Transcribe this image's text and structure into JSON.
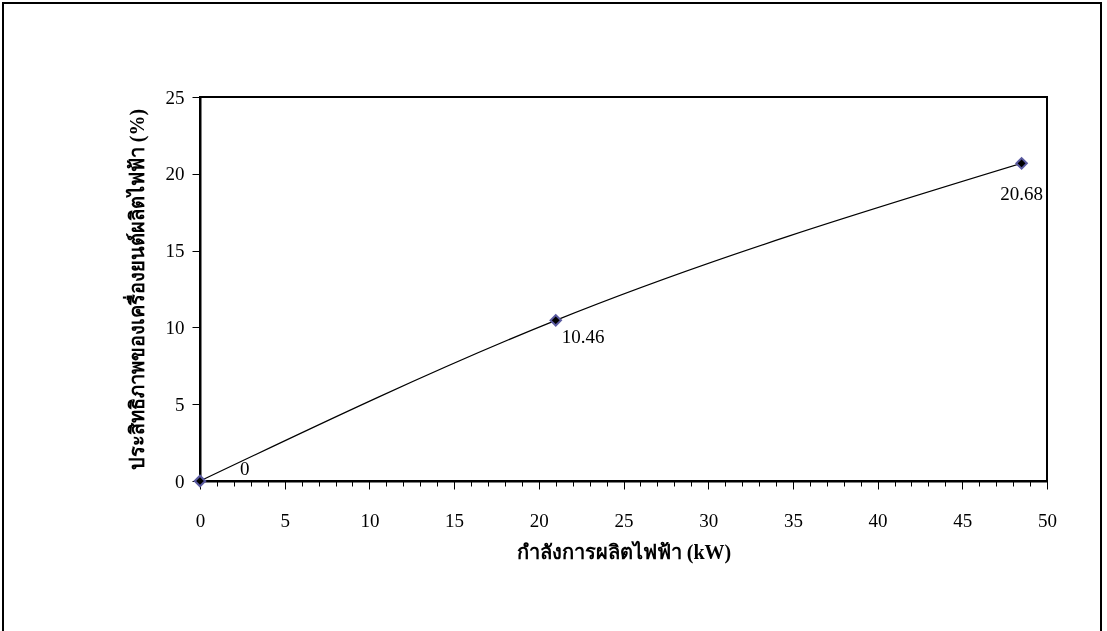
{
  "chart_data": {
    "type": "line",
    "xlabel": "กำลังการผลิตไฟฟ้า (kW)",
    "ylabel": "ประสิทธิภาพของเครื่องยนต์ผลิตไฟฟ้า (%)",
    "x": [
      0,
      21,
      48.5
    ],
    "series": [
      {
        "color": "#000000",
        "values": [
          0,
          10.46,
          20.68
        ],
        "value_labels": [
          "0",
          "10.46",
          "20.68"
        ]
      }
    ],
    "xlim": [
      0,
      50
    ],
    "ylim": [
      0,
      25
    ],
    "xticks": [
      0,
      {
        "value": 1,
        "label": null
      },
      {
        "value": 2,
        "label": null
      },
      {
        "value": 3,
        "label": null
      },
      {
        "value": 4,
        "label": null
      },
      5,
      {
        "value": 6,
        "label": null
      },
      {
        "value": 7,
        "label": null
      },
      {
        "value": 8,
        "label": null
      },
      {
        "value": 9,
        "label": null
      },
      10,
      {
        "value": 11,
        "label": null
      },
      {
        "value": 12,
        "label": null
      },
      {
        "value": 13,
        "label": null
      },
      {
        "value": 14,
        "label": null
      },
      15,
      {
        "value": 16,
        "label": null
      },
      {
        "value": 17,
        "label": null
      },
      {
        "value": 18,
        "label": null
      },
      {
        "value": 19,
        "label": null
      },
      20,
      {
        "value": 21,
        "label": null
      },
      {
        "value": 22,
        "label": null
      },
      {
        "value": 23,
        "label": null
      },
      {
        "value": 24,
        "label": null
      },
      25,
      {
        "value": 26,
        "label": null
      },
      {
        "value": 27,
        "label": null
      },
      {
        "value": 28,
        "label": null
      },
      {
        "value": 29,
        "label": null
      },
      30,
      {
        "value": 31,
        "label": null
      },
      {
        "value": 32,
        "label": null
      },
      {
        "value": 33,
        "label": null
      },
      {
        "value": 34,
        "label": null
      },
      35,
      {
        "value": 36,
        "label": null
      },
      {
        "value": 37,
        "label": null
      },
      {
        "value": 38,
        "label": null
      },
      {
        "value": 39,
        "label": null
      },
      40,
      {
        "value": 41,
        "label": null
      },
      {
        "value": 42,
        "label": null
      },
      {
        "value": 43,
        "label": null
      },
      {
        "value": 44,
        "label": null
      },
      45,
      {
        "value": 46,
        "label": null
      },
      {
        "value": 47,
        "label": null
      },
      {
        "value": 48,
        "label": null
      },
      {
        "value": 49,
        "label": null
      },
      50
    ],
    "yticks": [
      0,
      5,
      10,
      15,
      20,
      25
    ],
    "marker": "diamond",
    "line_style": "solid",
    "grid": false
  }
}
